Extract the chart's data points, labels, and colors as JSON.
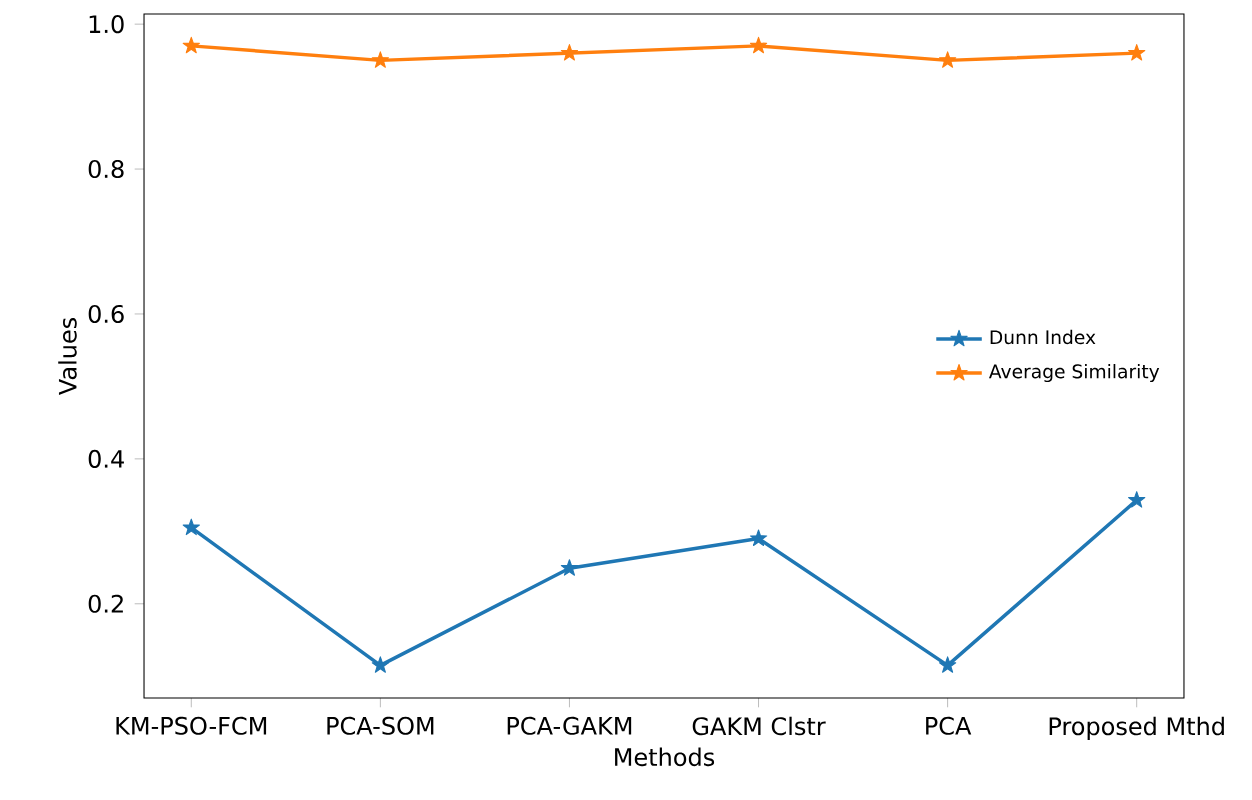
{
  "chart_data": {
    "type": "line",
    "xlabel": "Methods",
    "ylabel": "Values",
    "categories": [
      "KM-PSO-FCM",
      "PCA-SOM",
      "PCA-GAKM",
      "GAKM Clstr",
      "PCA",
      "Proposed Mthd"
    ],
    "series": [
      {
        "name": "Dunn Index",
        "color": "#1f77b4",
        "values": [
          0.305,
          0.115,
          0.249,
          0.29,
          0.115,
          0.343
        ]
      },
      {
        "name": "Average Similarity",
        "color": "#ff7f0e",
        "values": [
          0.97,
          0.95,
          0.96,
          0.97,
          0.95,
          0.96
        ]
      }
    ],
    "ylim": [
      0.07,
      1.014
    ],
    "yticks": [
      0.2,
      0.4,
      0.6,
      0.8,
      {
        "value": 1.0,
        "label": "1.0"
      }
    ],
    "marker": "star",
    "line_style": "solid",
    "grid": false,
    "legend": "center right"
  }
}
